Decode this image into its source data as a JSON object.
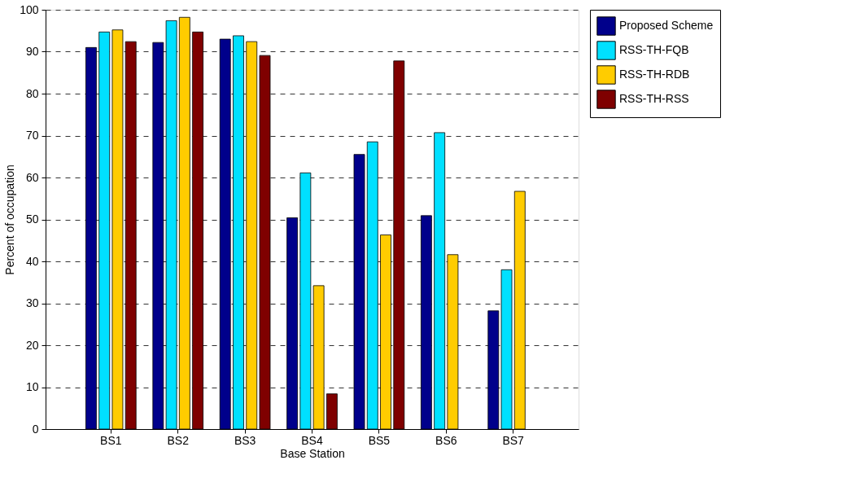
{
  "chart_data": {
    "type": "bar",
    "xlabel": "Base Station",
    "ylabel": "Percent of occupation",
    "categories": [
      "BS1",
      "BS2",
      "BS3",
      "BS4",
      "BS5",
      "BS6",
      "BS7"
    ],
    "series": [
      {
        "name": "Proposed Scheme",
        "color": "#00008b",
        "values": [
          91,
          92.2,
          93,
          50.4,
          65.5,
          50.9,
          28.2
        ]
      },
      {
        "name": "RSS-TH-FQB",
        "color": "#00e0ff",
        "values": [
          94.7,
          97.4,
          93.8,
          61.1,
          68.5,
          70.7,
          38
        ]
      },
      {
        "name": "RSS-TH-RDB",
        "color": "#ffcc00",
        "values": [
          95.2,
          98.2,
          92.4,
          34.2,
          46.3,
          41.6,
          56.7
        ]
      },
      {
        "name": "RSS-TH-RSS",
        "color": "#7f0000",
        "values": [
          92.4,
          94.7,
          89.1,
          8.4,
          87.8,
          null,
          null
        ]
      }
    ],
    "ylim": [
      0,
      100
    ],
    "yticks": [
      0,
      10,
      20,
      30,
      40,
      50,
      60,
      70,
      80,
      90,
      100
    ],
    "grid": "y",
    "legend": "top right"
  }
}
